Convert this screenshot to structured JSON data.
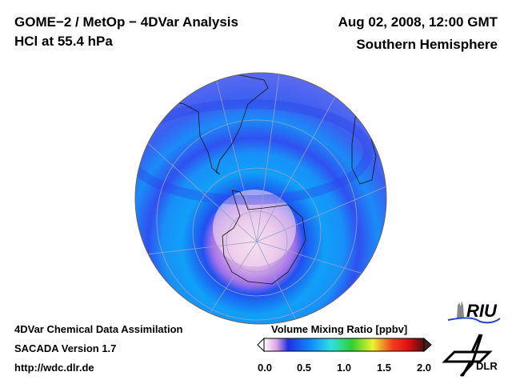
{
  "header": {
    "title": "GOME−2 / MetOp − 4DVar Analysis",
    "subtitle": "HCl at 55.4 hPa",
    "date": "Aug 02, 2008, 12:00 GMT",
    "hemisphere": "Southern Hemisphere"
  },
  "footer": {
    "line1": "4DVar Chemical Data Assimilation",
    "line2": "SACADA Version 1.7",
    "line3": "http://wdc.dlr.de"
  },
  "colorbar": {
    "title": "Volume Mixing Ratio [ppbv]",
    "ticks": [
      "0.0",
      "0.5",
      "1.0",
      "1.5",
      "2.0"
    ],
    "range": [
      0.0,
      2.0
    ],
    "colors": [
      "#ffffff",
      "#d8a0e0",
      "#2030e0",
      "#1090ff",
      "#30e0e0",
      "#30d030",
      "#f0f030",
      "#f08020",
      "#f01010",
      "#501010"
    ]
  },
  "map": {
    "projection": "orthographic-south-pole",
    "field": "HCl",
    "ocean_base": "#5a60f0",
    "vortex_color": "#f0d8ec"
  },
  "logos": {
    "riu": "RIU",
    "dlr": "DLR"
  }
}
